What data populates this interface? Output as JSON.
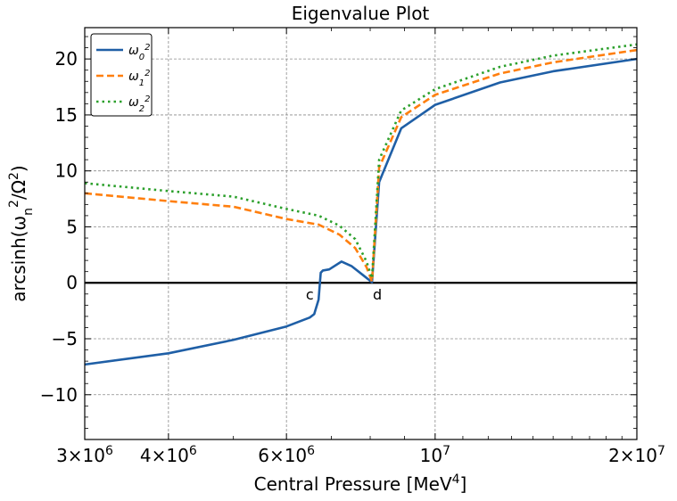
{
  "chart_data": {
    "type": "line",
    "title": "Eigenvalue Plot",
    "xlabel": "Central Pressure [MeV^4]",
    "ylabel": "arcsinh(ω_n^2/Ω^2)",
    "xscale": "log",
    "xlim": [
      3000000,
      20000000
    ],
    "ylim": [
      -14,
      22.8
    ],
    "grid": true,
    "legend_position": "top-left",
    "x_ticks": [
      {
        "value": 3000000,
        "mant": "3",
        "exp": "6"
      },
      {
        "value": 4000000,
        "mant": "4",
        "exp": "6"
      },
      {
        "value": 6000000,
        "mant": "6",
        "exp": "6"
      },
      {
        "value": 10000000,
        "mant": "",
        "exp": "7"
      },
      {
        "value": 20000000,
        "mant": "2",
        "exp": "7"
      }
    ],
    "y_ticks": [
      {
        "value": -10,
        "label": "−10"
      },
      {
        "value": -5,
        "label": "−5"
      },
      {
        "value": 0,
        "label": "0"
      },
      {
        "value": 5,
        "label": "5"
      },
      {
        "value": 10,
        "label": "10"
      },
      {
        "value": 15,
        "label": "15"
      },
      {
        "value": 20,
        "label": "20"
      }
    ],
    "series": [
      {
        "name": "ω_0^2",
        "color": "#1f5fa6",
        "dash": "solid",
        "points": [
          [
            3000000,
            -7.3
          ],
          [
            4000000,
            -6.3
          ],
          [
            5000000,
            -5.1
          ],
          [
            6000000,
            -3.9
          ],
          [
            6500000,
            -3.1
          ],
          [
            6600000,
            -2.8
          ],
          [
            6700000,
            -1.5
          ],
          [
            6750000,
            0.9
          ],
          [
            6800000,
            1.1
          ],
          [
            6950000,
            1.2
          ],
          [
            7250000,
            1.9
          ],
          [
            7500000,
            1.5
          ],
          [
            7800000,
            0.7
          ],
          [
            8050000,
            0.05
          ],
          [
            8250000,
            9.0
          ],
          [
            8900000,
            13.8
          ],
          [
            10000000,
            15.9
          ],
          [
            12500000,
            17.9
          ],
          [
            15000000,
            18.9
          ],
          [
            20000000,
            20.0
          ]
        ]
      },
      {
        "name": "ω_1^2",
        "color": "#ff7f0e",
        "dash": "dashed",
        "points": [
          [
            3000000,
            8.0
          ],
          [
            4000000,
            7.3
          ],
          [
            5000000,
            6.8
          ],
          [
            6000000,
            5.7
          ],
          [
            6700000,
            5.2
          ],
          [
            7200000,
            4.3
          ],
          [
            7600000,
            3.1
          ],
          [
            7900000,
            1.4
          ],
          [
            8050000,
            0.1
          ],
          [
            8250000,
            10.3
          ],
          [
            8900000,
            14.8
          ],
          [
            10000000,
            16.8
          ],
          [
            12500000,
            18.7
          ],
          [
            15000000,
            19.7
          ],
          [
            20000000,
            20.8
          ]
        ]
      },
      {
        "name": "ω_2^2",
        "color": "#2ca02c",
        "dash": "dotted",
        "points": [
          [
            3000000,
            8.9
          ],
          [
            4000000,
            8.2
          ],
          [
            5000000,
            7.7
          ],
          [
            6000000,
            6.6
          ],
          [
            6700000,
            6.0
          ],
          [
            7200000,
            5.1
          ],
          [
            7600000,
            3.9
          ],
          [
            7900000,
            1.9
          ],
          [
            8050000,
            0.4
          ],
          [
            8250000,
            11.0
          ],
          [
            8900000,
            15.4
          ],
          [
            10000000,
            17.3
          ],
          [
            12500000,
            19.3
          ],
          [
            15000000,
            20.3
          ],
          [
            20000000,
            21.3
          ]
        ]
      }
    ],
    "reference_line": {
      "y": 0,
      "color": "#000000"
    },
    "annotations": [
      {
        "text": "c",
        "x": 6500000,
        "y": -1.0
      },
      {
        "text": "d",
        "x": 8200000,
        "y": -1.0
      }
    ]
  }
}
